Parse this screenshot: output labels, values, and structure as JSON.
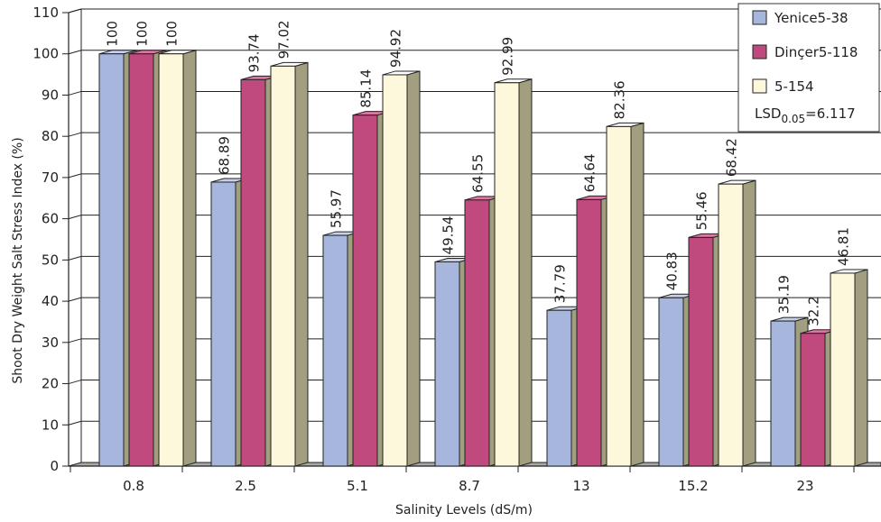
{
  "chart_data": {
    "type": "bar",
    "categories": [
      "0.8",
      "2.5",
      "5.1",
      "8.7",
      "13",
      "15.2",
      "23"
    ],
    "series": [
      {
        "name": "Yenice5-38",
        "values": [
          100,
          68.89,
          55.97,
          49.54,
          37.79,
          40.83,
          35.19
        ]
      },
      {
        "name": "Dinçer5-118",
        "values": [
          100,
          93.74,
          85.14,
          64.55,
          64.64,
          55.46,
          32.2
        ]
      },
      {
        "name": "5-154",
        "values": [
          100,
          97.02,
          94.92,
          92.99,
          82.36,
          68.42,
          46.81
        ]
      }
    ],
    "value_labels": [
      [
        "100",
        "68.89",
        "55.97",
        "49.54",
        "37.79",
        "40.83",
        "35.19"
      ],
      [
        "100",
        "93.74",
        "85.14",
        "64.55",
        "64.64",
        "55.46",
        "32.2"
      ],
      [
        "100",
        "97.02",
        "94.92",
        "92.99",
        "82.36",
        "68.42",
        "46.81"
      ]
    ],
    "xlabel": "Salinity Levels (dS/m)",
    "ylabel": "Shoot Dry Weight Salt Stress Index (%)",
    "ylim": [
      0,
      110
    ],
    "yticks": [
      0,
      10,
      20,
      30,
      40,
      50,
      60,
      70,
      80,
      90,
      100,
      110
    ],
    "grid": true,
    "legend_position": "top-right",
    "legend_note": {
      "prefix": "LSD",
      "subscript": "0.05",
      "suffix": "=6.117"
    },
    "colors": {
      "series_front": [
        "#a7b6dc",
        "#c04a7e",
        "#fdf8dc"
      ],
      "series_top": [
        "#c6d0ea",
        "#d978a2",
        "#ffffff"
      ],
      "bar_side": "#a29e80",
      "bar_outline": "#222222",
      "floor": "#a8a8a8"
    }
  }
}
